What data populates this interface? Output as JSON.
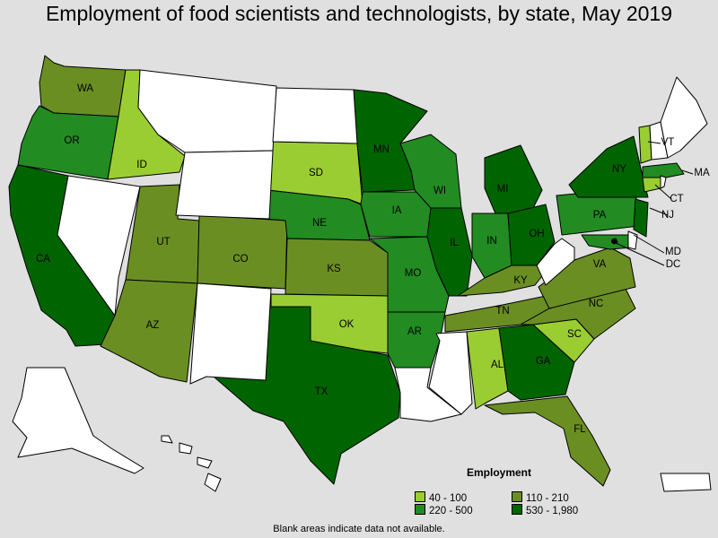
{
  "title": "Employment of food scientists and technologists, by state, May 2019",
  "footnote": "Blank areas indicate data not available.",
  "legend": {
    "title": "Employment",
    "items": [
      {
        "label": "40 - 100",
        "color": "#9acd32"
      },
      {
        "label": "110 - 210",
        "color": "#6b8e23"
      },
      {
        "label": "220 - 500",
        "color": "#228b22"
      },
      {
        "label": "530 - 1,980",
        "color": "#006400"
      }
    ]
  },
  "no_data_color": "#ffffff",
  "states": [
    {
      "abbr": "WA",
      "class": "110 - 210"
    },
    {
      "abbr": "OR",
      "class": "220 - 500"
    },
    {
      "abbr": "CA",
      "class": "530 - 1,980"
    },
    {
      "abbr": "ID",
      "class": "40 - 100"
    },
    {
      "abbr": "UT",
      "class": "110 - 210"
    },
    {
      "abbr": "AZ",
      "class": "110 - 210"
    },
    {
      "abbr": "CO",
      "class": "110 - 210"
    },
    {
      "abbr": "SD",
      "class": "40 - 100"
    },
    {
      "abbr": "NE",
      "class": "220 - 500"
    },
    {
      "abbr": "KS",
      "class": "110 - 210"
    },
    {
      "abbr": "OK",
      "class": "40 - 100"
    },
    {
      "abbr": "TX",
      "class": "530 - 1,980"
    },
    {
      "abbr": "MN",
      "class": "530 - 1,980"
    },
    {
      "abbr": "IA",
      "class": "220 - 500"
    },
    {
      "abbr": "MO",
      "class": "220 - 500"
    },
    {
      "abbr": "AR",
      "class": "220 - 500"
    },
    {
      "abbr": "WI",
      "class": "220 - 500"
    },
    {
      "abbr": "IL",
      "class": "530 - 1,980"
    },
    {
      "abbr": "MI",
      "class": "530 - 1,980"
    },
    {
      "abbr": "IN",
      "class": "220 - 500"
    },
    {
      "abbr": "OH",
      "class": "530 - 1,980"
    },
    {
      "abbr": "KY",
      "class": "110 - 210"
    },
    {
      "abbr": "TN",
      "class": "110 - 210"
    },
    {
      "abbr": "AL",
      "class": "40 - 100"
    },
    {
      "abbr": "GA",
      "class": "530 - 1,980"
    },
    {
      "abbr": "FL",
      "class": "110 - 210"
    },
    {
      "abbr": "SC",
      "class": "40 - 100"
    },
    {
      "abbr": "NC",
      "class": "110 - 210"
    },
    {
      "abbr": "VA",
      "class": "110 - 210"
    },
    {
      "abbr": "PA",
      "class": "220 - 500"
    },
    {
      "abbr": "NY",
      "class": "530 - 1,980"
    },
    {
      "abbr": "NJ",
      "class": "530 - 1,980"
    },
    {
      "abbr": "MD",
      "class": "220 - 500"
    },
    {
      "abbr": "DC",
      "class": "530 - 1,980"
    },
    {
      "abbr": "CT",
      "class": "40 - 100"
    },
    {
      "abbr": "MA",
      "class": "220 - 500"
    },
    {
      "abbr": "VT",
      "class": "40 - 100"
    },
    {
      "abbr": "NH",
      "class": "no data"
    },
    {
      "abbr": "ME",
      "class": "no data"
    },
    {
      "abbr": "RI",
      "class": "no data"
    },
    {
      "abbr": "DE",
      "class": "no data"
    },
    {
      "abbr": "MT",
      "class": "no data"
    },
    {
      "abbr": "WY",
      "class": "no data"
    },
    {
      "abbr": "ND",
      "class": "no data"
    },
    {
      "abbr": "NV",
      "class": "no data"
    },
    {
      "abbr": "NM",
      "class": "no data"
    },
    {
      "abbr": "LA",
      "class": "no data"
    },
    {
      "abbr": "MS",
      "class": "no data"
    },
    {
      "abbr": "WV",
      "class": "no data"
    },
    {
      "abbr": "AK",
      "class": "no data"
    },
    {
      "abbr": "HI",
      "class": "no data"
    },
    {
      "abbr": "PR",
      "class": "no data"
    }
  ]
}
